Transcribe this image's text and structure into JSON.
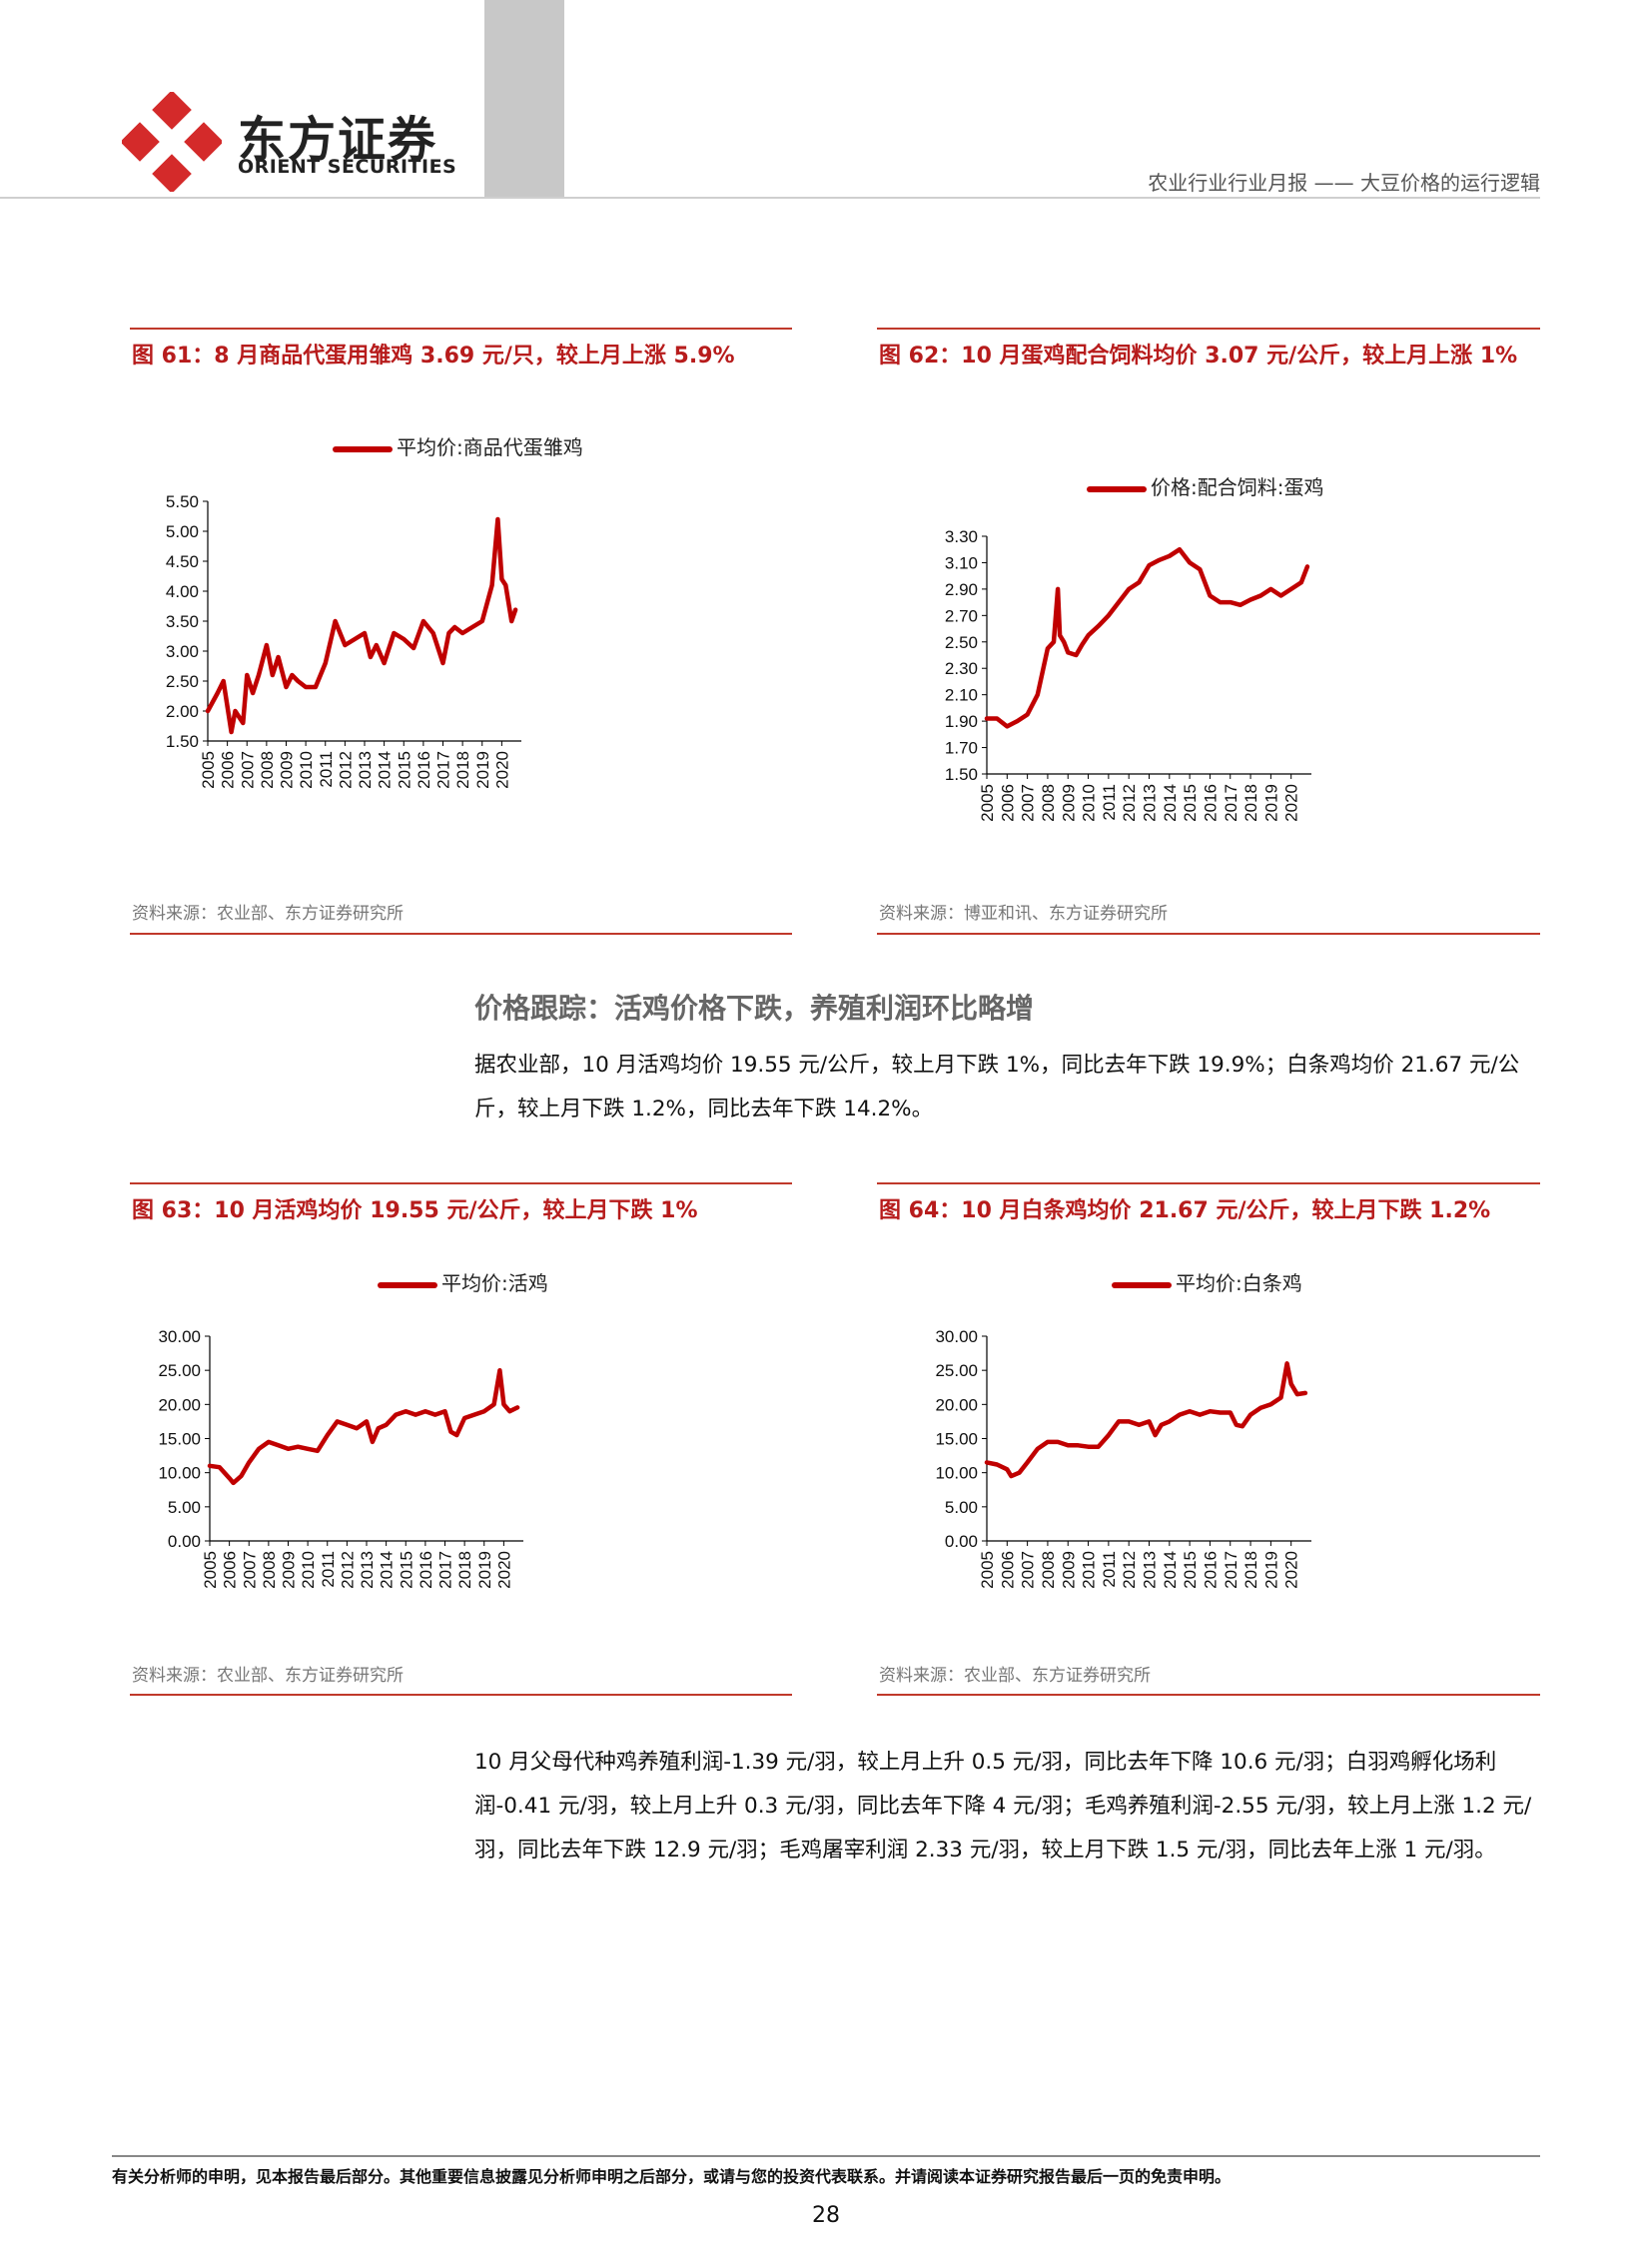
{
  "header": {
    "brand_cn": "东方证券",
    "brand_en": "ORIENT SECURITIES",
    "report": "农业行业行业月报 —— 大豆价格的运行逻辑"
  },
  "figures": [
    {
      "title": "图 61：8 月商品代蛋用雏鸡 3.69 元/只，较上月上涨 5.9%",
      "source": "资料来源：农业部、东方证券研究所"
    },
    {
      "title": "图 62：10 月蛋鸡配合饲料均价 3.07 元/公斤，较上月上涨 1%",
      "source": "资料来源：博亚和讯、东方证券研究所"
    },
    {
      "title": "图 63：10 月活鸡均价 19.55 元/公斤，较上月下跌 1%",
      "source": "资料来源：农业部、东方证券研究所"
    },
    {
      "title": "图 64：10 月白条鸡均价 21.67 元/公斤，较上月下跌 1.2%",
      "source": "资料来源：农业部、东方证券研究所"
    }
  ],
  "section": {
    "title": "价格跟踪：活鸡价格下跌，养殖利润环比略增",
    "para1": "据农业部，10 月活鸡均价 19.55 元/公斤，较上月下跌 1%，同比去年下跌 19.9%；白条鸡均价 21.67 元/公斤，较上月下跌 1.2%，同比去年下跌 14.2%。",
    "para2": "10 月父母代种鸡养殖利润-1.39 元/羽，较上月上升 0.5 元/羽，同比去年下降 10.6 元/羽；白羽鸡孵化场利润-0.41 元/羽，较上月上升 0.3 元/羽，同比去年下降 4 元/羽；毛鸡养殖利润-2.55 元/羽，较上月上涨 1.2 元/羽，同比去年下跌 12.9 元/羽；毛鸡屠宰利润 2.33 元/羽，较上月下跌 1.5 元/羽，同比去年上涨 1 元/羽。"
  },
  "footer": {
    "disclaimer": "有关分析师的申明，见本报告最后部分。其他重要信息披露见分析师申明之后部分，或请与您的投资代表联系。并请阅读本证券研究报告最后一页的免责申明。",
    "page": "28"
  },
  "chart_data": [
    {
      "type": "line",
      "series": [
        {
          "name": "平均价:商品代蛋雏鸡",
          "color": "#c00000"
        }
      ],
      "x": [
        2005,
        2005.5,
        2005.8,
        2006.2,
        2006.4,
        2006.8,
        2007,
        2007.3,
        2007.6,
        2008,
        2008.3,
        2008.6,
        2009,
        2009.3,
        2009.6,
        2010,
        2010.5,
        2011,
        2011.5,
        2012,
        2012.5,
        2013,
        2013.3,
        2013.6,
        2014,
        2014.5,
        2015,
        2015.5,
        2016,
        2016.5,
        2017,
        2017.3,
        2017.6,
        2018,
        2018.5,
        2019,
        2019.5,
        2019.8,
        2020,
        2020.2,
        2020.5,
        2020.7
      ],
      "y": [
        2.0,
        2.3,
        2.5,
        1.65,
        2.0,
        1.8,
        2.6,
        2.3,
        2.6,
        3.1,
        2.6,
        2.9,
        2.4,
        2.6,
        2.5,
        2.4,
        2.4,
        2.8,
        3.5,
        3.1,
        3.2,
        3.3,
        2.9,
        3.1,
        2.8,
        3.3,
        3.2,
        3.05,
        3.5,
        3.3,
        2.8,
        3.3,
        3.4,
        3.3,
        3.4,
        3.5,
        4.1,
        5.2,
        4.2,
        4.1,
        3.5,
        3.69
      ],
      "x_ticks": [
        "2005",
        "2006",
        "2007",
        "2008",
        "2009",
        "2010",
        "2011",
        "2012",
        "2013",
        "2014",
        "2015",
        "2016",
        "2017",
        "2018",
        "2019",
        "2020"
      ],
      "y_ticks": [
        "1.50",
        "2.00",
        "2.50",
        "3.00",
        "3.50",
        "4.00",
        "4.50",
        "5.00",
        "5.50"
      ],
      "ylim": [
        1.5,
        5.5
      ]
    },
    {
      "type": "line",
      "series": [
        {
          "name": "价格:配合饲料:蛋鸡",
          "color": "#c00000"
        }
      ],
      "x": [
        2005,
        2005.5,
        2006,
        2006.5,
        2007,
        2007.5,
        2008,
        2008.3,
        2008.5,
        2008.6,
        2008.8,
        2009,
        2009.4,
        2009.7,
        2010,
        2010.5,
        2011,
        2011.5,
        2012,
        2012.5,
        2013,
        2013.5,
        2014,
        2014.5,
        2015,
        2015.5,
        2016,
        2016.5,
        2017,
        2017.5,
        2018,
        2018.5,
        2019,
        2019.5,
        2020,
        2020.5,
        2020.8
      ],
      "y": [
        1.92,
        1.92,
        1.86,
        1.9,
        1.95,
        2.1,
        2.45,
        2.5,
        2.9,
        2.55,
        2.5,
        2.42,
        2.4,
        2.48,
        2.55,
        2.62,
        2.7,
        2.8,
        2.9,
        2.95,
        3.08,
        3.12,
        3.15,
        3.2,
        3.1,
        3.05,
        2.85,
        2.8,
        2.8,
        2.78,
        2.82,
        2.85,
        2.9,
        2.85,
        2.9,
        2.95,
        3.07
      ],
      "x_ticks": [
        "2005",
        "2006",
        "2007",
        "2008",
        "2009",
        "2010",
        "2011",
        "2012",
        "2013",
        "2014",
        "2015",
        "2016",
        "2017",
        "2018",
        "2019",
        "2020"
      ],
      "y_ticks": [
        "1.50",
        "1.70",
        "1.90",
        "2.10",
        "2.30",
        "2.50",
        "2.70",
        "2.90",
        "3.10",
        "3.30"
      ],
      "ylim": [
        1.5,
        3.3
      ]
    },
    {
      "type": "line",
      "series": [
        {
          "name": "平均价:活鸡",
          "color": "#c00000"
        }
      ],
      "x": [
        2005,
        2005.5,
        2006,
        2006.2,
        2006.6,
        2007,
        2007.5,
        2008,
        2008.5,
        2009,
        2009.5,
        2010,
        2010.5,
        2011,
        2011.5,
        2012,
        2012.5,
        2013,
        2013.3,
        2013.6,
        2014,
        2014.5,
        2015,
        2015.5,
        2016,
        2016.5,
        2017,
        2017.3,
        2017.6,
        2018,
        2018.5,
        2019,
        2019.5,
        2019.8,
        2020,
        2020.3,
        2020.7
      ],
      "y": [
        11,
        10.8,
        9.2,
        8.5,
        9.5,
        11.5,
        13.5,
        14.5,
        14,
        13.5,
        13.8,
        13.5,
        13.2,
        15.5,
        17.5,
        17,
        16.5,
        17.5,
        14.5,
        16.5,
        17,
        18.5,
        19,
        18.5,
        19,
        18.5,
        19,
        16,
        15.5,
        18,
        18.5,
        19,
        20,
        25,
        20,
        19,
        19.55
      ],
      "x_ticks": [
        "2005",
        "2006",
        "2007",
        "2008",
        "2009",
        "2010",
        "2011",
        "2012",
        "2013",
        "2014",
        "2015",
        "2016",
        "2017",
        "2018",
        "2019",
        "2020"
      ],
      "y_ticks": [
        "0.00",
        "5.00",
        "10.00",
        "15.00",
        "20.00",
        "25.00",
        "30.00"
      ],
      "ylim": [
        0,
        30
      ]
    },
    {
      "type": "line",
      "series": [
        {
          "name": "平均价:白条鸡",
          "color": "#c00000"
        }
      ],
      "x": [
        2005,
        2005.5,
        2006,
        2006.2,
        2006.6,
        2007,
        2007.5,
        2008,
        2008.5,
        2009,
        2009.5,
        2010,
        2010.5,
        2011,
        2011.5,
        2012,
        2012.5,
        2013,
        2013.3,
        2013.6,
        2014,
        2014.5,
        2015,
        2015.5,
        2016,
        2016.5,
        2017,
        2017.3,
        2017.6,
        2018,
        2018.5,
        2019,
        2019.5,
        2019.8,
        2020,
        2020.3,
        2020.7
      ],
      "y": [
        11.5,
        11.2,
        10.5,
        9.5,
        10,
        11.5,
        13.5,
        14.5,
        14.5,
        14,
        14,
        13.8,
        13.8,
        15.5,
        17.5,
        17.5,
        17,
        17.5,
        15.5,
        17,
        17.5,
        18.5,
        19,
        18.5,
        19,
        18.8,
        18.8,
        17,
        16.8,
        18.5,
        19.5,
        20,
        21,
        26,
        23,
        21.5,
        21.67
      ],
      "x_ticks": [
        "2005",
        "2006",
        "2007",
        "2008",
        "2009",
        "2010",
        "2011",
        "2012",
        "2013",
        "2014",
        "2015",
        "2016",
        "2017",
        "2018",
        "2019",
        "2020"
      ],
      "y_ticks": [
        "0.00",
        "5.00",
        "10.00",
        "15.00",
        "20.00",
        "25.00",
        "30.00"
      ],
      "ylim": [
        0,
        30
      ]
    }
  ]
}
